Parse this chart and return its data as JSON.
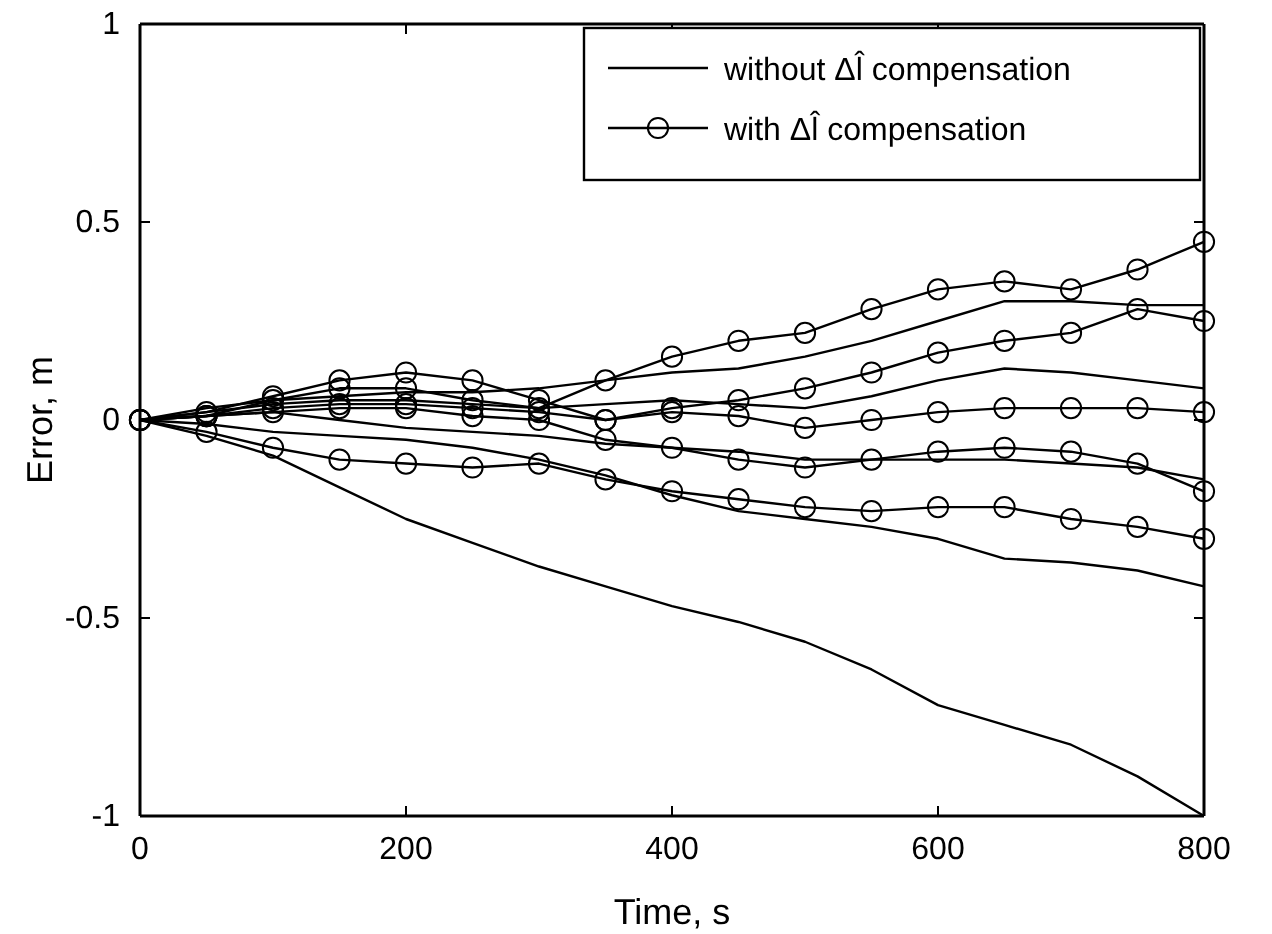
{
  "chart_data": {
    "type": "line",
    "xlabel": "Time, s",
    "ylabel": "Error, m",
    "x": [
      0,
      50,
      100,
      150,
      200,
      250,
      300,
      350,
      400,
      450,
      500,
      550,
      600,
      650,
      700,
      750,
      800
    ],
    "xlim": [
      0,
      800
    ],
    "xticks": [
      0,
      200,
      400,
      600,
      800
    ],
    "ylim": [
      -1,
      1
    ],
    "yticks": [
      -1,
      -0.5,
      0,
      0.5,
      1
    ],
    "legend": "top right",
    "grid": false,
    "series": [
      {
        "name": "without Δl̂ compensation",
        "color": "#000000",
        "marker": "none",
        "values": [
          0,
          0.03,
          0.05,
          0.06,
          0.07,
          0.07,
          0.08,
          0.1,
          0.12,
          0.13,
          0.16,
          0.2,
          0.25,
          0.3,
          0.3,
          0.29,
          0.29
        ]
      },
      {
        "color": "#000000",
        "marker": "none",
        "values": [
          0,
          0.02,
          0.04,
          0.05,
          0.05,
          0.04,
          0.03,
          0.04,
          0.05,
          0.04,
          0.03,
          0.06,
          0.1,
          0.13,
          0.12,
          0.1,
          0.08
        ]
      },
      {
        "color": "#000000",
        "marker": "none",
        "values": [
          0,
          0.01,
          0.02,
          0.0,
          -0.02,
          -0.03,
          -0.04,
          -0.06,
          -0.07,
          -0.08,
          -0.1,
          -0.1,
          -0.1,
          -0.1,
          -0.11,
          -0.12,
          -0.15
        ]
      },
      {
        "color": "#000000",
        "marker": "none",
        "values": [
          0,
          -0.01,
          -0.03,
          -0.04,
          -0.05,
          -0.07,
          -0.1,
          -0.14,
          -0.19,
          -0.23,
          -0.25,
          -0.27,
          -0.3,
          -0.35,
          -0.36,
          -0.38,
          -0.42
        ]
      },
      {
        "color": "#000000",
        "marker": "none",
        "values": [
          0,
          -0.04,
          -0.09,
          -0.17,
          -0.25,
          -0.31,
          -0.37,
          -0.42,
          -0.47,
          -0.51,
          -0.56,
          -0.63,
          -0.72,
          -0.77,
          -0.82,
          -0.9,
          -1.0
        ]
      },
      {
        "name": "with Δl̂ compensation",
        "color": "#000000",
        "marker": "circle",
        "values": [
          0,
          0.01,
          0.05,
          0.08,
          0.08,
          0.05,
          0.03,
          0.1,
          0.16,
          0.2,
          0.22,
          0.28,
          0.33,
          0.35,
          0.33,
          0.38,
          0.45
        ]
      },
      {
        "color": "#000000",
        "marker": "circle",
        "values": [
          0,
          0.02,
          0.06,
          0.1,
          0.12,
          0.1,
          0.05,
          0.0,
          0.03,
          0.05,
          0.08,
          0.12,
          0.17,
          0.2,
          0.22,
          0.28,
          0.25
        ]
      },
      {
        "color": "#000000",
        "marker": "circle",
        "values": [
          0,
          0.01,
          0.03,
          0.04,
          0.04,
          0.03,
          0.02,
          0.0,
          0.02,
          0.01,
          -0.02,
          0.0,
          0.02,
          0.03,
          0.03,
          0.03,
          0.02
        ]
      },
      {
        "color": "#000000",
        "marker": "circle",
        "values": [
          0,
          0.01,
          0.02,
          0.03,
          0.03,
          0.01,
          0.0,
          -0.05,
          -0.07,
          -0.1,
          -0.12,
          -0.1,
          -0.08,
          -0.07,
          -0.08,
          -0.11,
          -0.18
        ]
      },
      {
        "color": "#000000",
        "marker": "circle",
        "values": [
          0,
          -0.03,
          -0.07,
          -0.1,
          -0.11,
          -0.12,
          -0.11,
          -0.15,
          -0.18,
          -0.2,
          -0.22,
          -0.23,
          -0.22,
          -0.22,
          -0.25,
          -0.27,
          -0.3
        ]
      }
    ]
  }
}
